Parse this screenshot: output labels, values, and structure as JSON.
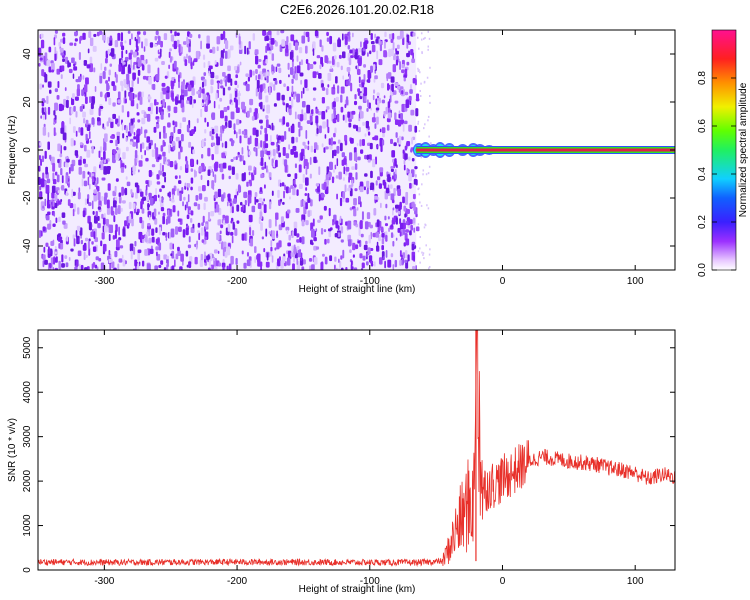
{
  "title": "C2E6.2026.101.20.02.R18",
  "colors": {
    "noise_purple": "#7a1cf0",
    "snr_line": "#e8302a",
    "signal_red": "#e0204a",
    "signal_green": "#2ee02a",
    "signal_blue": "#3050ff",
    "signal_cyan": "#20e0f0"
  },
  "colorbar": {
    "label": "Normalized spectral amplitude",
    "range": [
      0,
      1
    ],
    "ticks": [
      "0.0",
      "0.2",
      "0.4",
      "0.6",
      "0.8"
    ],
    "tick_values": [
      0.0,
      0.2,
      0.4,
      0.6,
      0.8
    ],
    "colormap": "rainbow (white-purple-blue-cyan-green-yellow-red-magenta)"
  },
  "chart_data": [
    {
      "type": "heatmap",
      "xlabel": "Height of straight line (km)",
      "ylabel": "Frequency (Hz)",
      "xlim": [
        -350,
        130
      ],
      "ylim": [
        -50,
        50
      ],
      "xticks": [
        "-300",
        "-200",
        "-100",
        "0",
        "100"
      ],
      "xtick_values": [
        -300,
        -200,
        -100,
        0,
        100
      ],
      "yticks": [
        "-40",
        "-20",
        "0",
        "20",
        "40"
      ],
      "ytick_values": [
        -40,
        -20,
        0,
        20,
        40
      ],
      "regions": [
        {
          "x_range": [
            -350,
            -65
          ],
          "description": "broadband noise",
          "amplitude_range": [
            0.0,
            0.15
          ]
        },
        {
          "x_range": [
            -65,
            130
          ],
          "frequency": 0,
          "amplitude_range": [
            0.3,
            1.0
          ]
        }
      ],
      "grid": false
    },
    {
      "type": "line",
      "xlabel": "Height of straight line (km)",
      "ylabel": "SNR (10 * v/v)",
      "xlim": [
        -350,
        130
      ],
      "ylim": [
        0,
        5400
      ],
      "xticks": [
        "-300",
        "-200",
        "-100",
        "0",
        "100"
      ],
      "xtick_values": [
        -300,
        -200,
        -100,
        0,
        100
      ],
      "yticks": [
        "0",
        "1000",
        "2000",
        "3000",
        "4000",
        "5000"
      ],
      "ytick_values": [
        0,
        1000,
        2000,
        3000,
        4000,
        5000
      ],
      "series": [
        {
          "x": [
            -350,
            -300,
            -250,
            -200,
            -150,
            -100,
            -60,
            -45,
            -40,
            -35,
            -30,
            -25,
            -21,
            -20,
            -15,
            -10,
            -5,
            0,
            10,
            20,
            30,
            40,
            50,
            60,
            70,
            80,
            90,
            100,
            110,
            120,
            130
          ],
          "y": [
            180,
            170,
            175,
            180,
            175,
            170,
            170,
            200,
            500,
            900,
            1200,
            1500,
            1700,
            5400,
            1800,
            1900,
            1950,
            2050,
            2250,
            2450,
            2550,
            2500,
            2450,
            2420,
            2380,
            2300,
            2250,
            2180,
            2050,
            2150,
            2100
          ]
        }
      ],
      "grid": false
    }
  ]
}
